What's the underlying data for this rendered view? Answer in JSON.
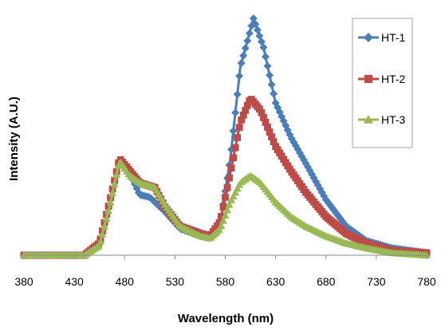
{
  "chart_data": {
    "type": "line",
    "xlabel": "Wavelength (nm)",
    "ylabel": "Intensity (A.U.)",
    "xlim": [
      380,
      780
    ],
    "ylim": [
      0,
      1
    ],
    "x_ticks": [
      "380",
      "430",
      "480",
      "530",
      "580",
      "630",
      "680",
      "730",
      "780"
    ],
    "grid": false,
    "legend_position": "top-right",
    "series": [
      {
        "name": "HT-1",
        "color": "#4a7ebb",
        "marker": "diamond",
        "points": [
          [
            380,
            0
          ],
          [
            440,
            0
          ],
          [
            455,
            0.05
          ],
          [
            465,
            0.22
          ],
          [
            475,
            0.4
          ],
          [
            485,
            0.34
          ],
          [
            495,
            0.25
          ],
          [
            505,
            0.24
          ],
          [
            520,
            0.18
          ],
          [
            535,
            0.11
          ],
          [
            555,
            0.08
          ],
          [
            565,
            0.07
          ],
          [
            575,
            0.13
          ],
          [
            585,
            0.4
          ],
          [
            595,
            0.78
          ],
          [
            608,
            0.98
          ],
          [
            618,
            0.86
          ],
          [
            630,
            0.63
          ],
          [
            645,
            0.49
          ],
          [
            660,
            0.38
          ],
          [
            680,
            0.23
          ],
          [
            700,
            0.12
          ],
          [
            720,
            0.06
          ],
          [
            745,
            0.03
          ],
          [
            780,
            0.01
          ]
        ]
      },
      {
        "name": "HT-2",
        "color": "#be4b48",
        "marker": "square",
        "points": [
          [
            380,
            0
          ],
          [
            440,
            0
          ],
          [
            455,
            0.05
          ],
          [
            465,
            0.22
          ],
          [
            475,
            0.4
          ],
          [
            485,
            0.35
          ],
          [
            495,
            0.3
          ],
          [
            510,
            0.28
          ],
          [
            520,
            0.2
          ],
          [
            535,
            0.12
          ],
          [
            555,
            0.09
          ],
          [
            565,
            0.08
          ],
          [
            575,
            0.14
          ],
          [
            585,
            0.34
          ],
          [
            595,
            0.55
          ],
          [
            605,
            0.65
          ],
          [
            615,
            0.6
          ],
          [
            630,
            0.45
          ],
          [
            645,
            0.35
          ],
          [
            660,
            0.26
          ],
          [
            680,
            0.16
          ],
          [
            700,
            0.09
          ],
          [
            720,
            0.05
          ],
          [
            745,
            0.02
          ],
          [
            780,
            0.01
          ]
        ]
      },
      {
        "name": "HT-3",
        "color": "#98b954",
        "marker": "triangle",
        "points": [
          [
            380,
            0
          ],
          [
            440,
            0
          ],
          [
            455,
            0.04
          ],
          [
            465,
            0.2
          ],
          [
            475,
            0.39
          ],
          [
            485,
            0.33
          ],
          [
            495,
            0.3
          ],
          [
            510,
            0.28
          ],
          [
            520,
            0.21
          ],
          [
            535,
            0.12
          ],
          [
            555,
            0.08
          ],
          [
            565,
            0.07
          ],
          [
            575,
            0.11
          ],
          [
            585,
            0.22
          ],
          [
            595,
            0.3
          ],
          [
            605,
            0.33
          ],
          [
            615,
            0.3
          ],
          [
            630,
            0.22
          ],
          [
            645,
            0.16
          ],
          [
            660,
            0.12
          ],
          [
            680,
            0.08
          ],
          [
            700,
            0.05
          ],
          [
            720,
            0.03
          ],
          [
            745,
            0.01
          ],
          [
            780,
            0
          ]
        ]
      }
    ]
  }
}
